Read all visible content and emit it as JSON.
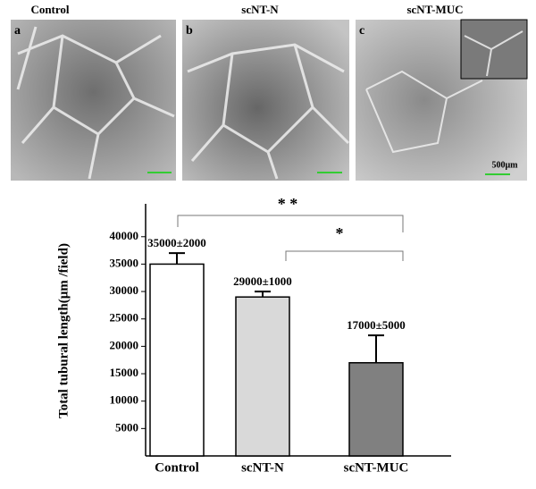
{
  "panels": [
    {
      "label": "a",
      "title": "Control"
    },
    {
      "label": "b",
      "title": "scNT-N"
    },
    {
      "label": "c",
      "title": "scNT-MUC",
      "scale_text": "500μm"
    }
  ],
  "chart_data": {
    "type": "bar",
    "ylabel": "Total tubural length(μm /field)",
    "categories": [
      "Control",
      "scNT-N",
      "scNT-MUC"
    ],
    "values": [
      35000,
      29000,
      17000
    ],
    "errors": [
      2000,
      1000,
      5000
    ],
    "value_labels": [
      "35000±2000",
      "29000±1000",
      "17000±5000"
    ],
    "colors": [
      "#ffffff",
      "#d9d9d9",
      "#808080"
    ],
    "ylim": [
      0,
      46000
    ],
    "yticks": [
      5000,
      10000,
      15000,
      20000,
      25000,
      30000,
      35000,
      40000
    ],
    "annotations": [
      {
        "text": "* *"
      },
      {
        "text": "*"
      }
    ]
  }
}
